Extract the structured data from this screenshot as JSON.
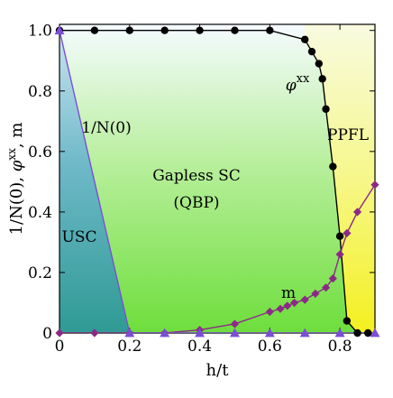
{
  "chart_data": {
    "type": "line",
    "xlabel": "h/t",
    "ylabel": "1/N(0), φxx, m",
    "xlim": [
      0,
      0.9
    ],
    "ylim": [
      0,
      1.02
    ],
    "x_ticks": [
      "0",
      "0.2",
      "0.4",
      "0.6",
      "0.8"
    ],
    "x_tick_values": [
      0,
      0.2,
      0.4,
      0.6,
      0.8
    ],
    "y_ticks": [
      "0",
      "0.2",
      "0.4",
      "0.6",
      "0.8",
      "1.0"
    ],
    "y_tick_values": [
      0,
      0.2,
      0.4,
      0.6,
      0.8,
      1.0
    ],
    "region_labels": {
      "usc": "USC",
      "gapless_line1": "Gapless SC",
      "gapless_line2": "(QBP)",
      "ppfl": "PPFL"
    },
    "series": [
      {
        "label": "φxx",
        "color": "#000000",
        "marker": "circle",
        "x": [
          0,
          0.1,
          0.2,
          0.3,
          0.4,
          0.5,
          0.6,
          0.7,
          0.72,
          0.74,
          0.75,
          0.76,
          0.78,
          0.8,
          0.82,
          0.85,
          0.88
        ],
        "y": [
          1.0,
          1.0,
          1.0,
          1.0,
          1.0,
          1.0,
          1.0,
          0.97,
          0.93,
          0.89,
          0.84,
          0.74,
          0.55,
          0.32,
          0.04,
          0.0,
          0.0
        ]
      },
      {
        "label": "m",
        "color": "#8b2a86",
        "marker": "diamond",
        "x": [
          0,
          0.1,
          0.2,
          0.3,
          0.4,
          0.5,
          0.6,
          0.63,
          0.65,
          0.67,
          0.7,
          0.73,
          0.76,
          0.78,
          0.8,
          0.82,
          0.85,
          0.9
        ],
        "y": [
          0.0,
          0.0,
          0.0,
          0.0,
          0.01,
          0.03,
          0.07,
          0.08,
          0.09,
          0.1,
          0.11,
          0.13,
          0.15,
          0.18,
          0.26,
          0.33,
          0.4,
          0.49
        ]
      },
      {
        "label": "1/N(0)",
        "color": "#7a4fd6",
        "marker": "triangle",
        "x": [
          0,
          0.2,
          0.3,
          0.4,
          0.5,
          0.6,
          0.7,
          0.8,
          0.9
        ],
        "y": [
          1.0,
          0.0,
          0.0,
          0.0,
          0.0,
          0.0,
          0.0,
          0.0,
          0.0
        ]
      }
    ]
  }
}
